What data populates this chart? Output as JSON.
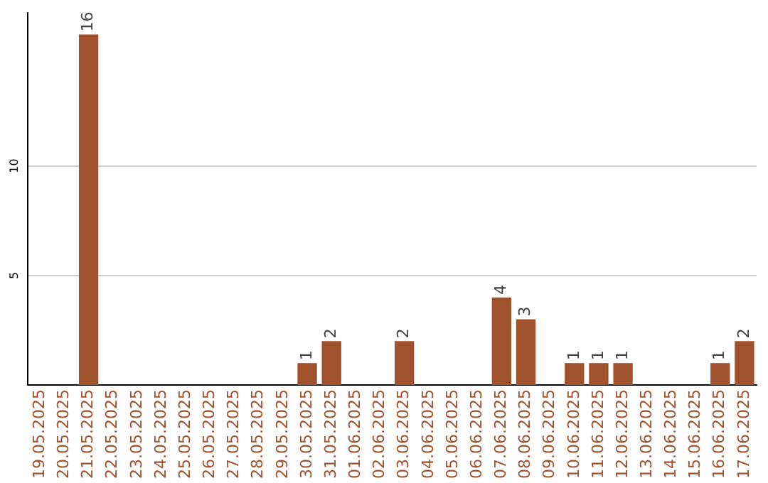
{
  "chart_data": {
    "type": "bar",
    "categories": [
      "19.05.2025",
      "20.05.2025",
      "21.05.2025",
      "22.05.2025",
      "23.05.2025",
      "24.05.2025",
      "25.05.2025",
      "26.05.2025",
      "27.05.2025",
      "28.05.2025",
      "29.05.2025",
      "30.05.2025",
      "31.05.2025",
      "01.06.2025",
      "02.06.2025",
      "03.06.2025",
      "04.06.2025",
      "05.06.2025",
      "06.06.2025",
      "07.06.2025",
      "08.06.2025",
      "09.06.2025",
      "10.06.2025",
      "11.06.2025",
      "12.06.2025",
      "13.06.2025",
      "14.06.2025",
      "15.06.2025",
      "16.06.2025",
      "17.06.2025"
    ],
    "values": [
      0,
      0,
      16,
      0,
      0,
      0,
      0,
      0,
      0,
      0,
      0,
      1,
      2,
      0,
      0,
      2,
      0,
      0,
      0,
      4,
      3,
      0,
      1,
      1,
      1,
      0,
      0,
      0,
      1,
      2
    ],
    "value_labels": [
      null,
      null,
      "16",
      null,
      null,
      null,
      null,
      null,
      null,
      null,
      null,
      "1",
      "2",
      null,
      null,
      "2",
      null,
      null,
      null,
      "4",
      "3",
      null,
      "1",
      "1",
      "1",
      null,
      null,
      null,
      "1",
      "2"
    ],
    "color": "#a0522d",
    "ylim": [
      0,
      17
    ],
    "yticks": [
      5,
      10
    ],
    "grid": "y",
    "legend": false
  }
}
